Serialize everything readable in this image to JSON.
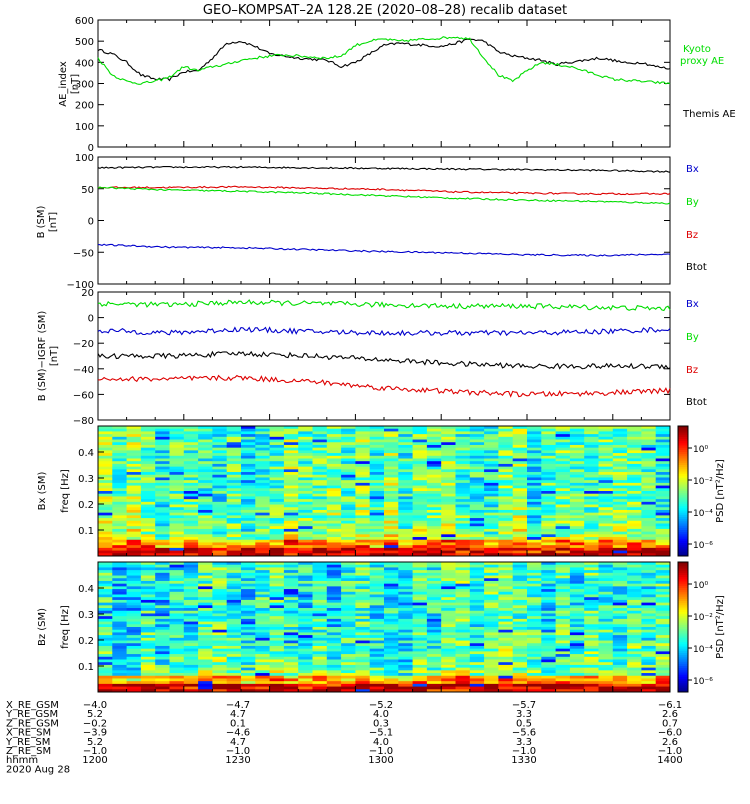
{
  "title": "GEO–KOMPSAT–2A 128.2E (2020–08–28) recalib dataset",
  "colors": {
    "black": "#000000",
    "green": "#00dd00",
    "red": "#dd0000",
    "blue": "#0000cc"
  },
  "chart_data": [
    {
      "type": "line",
      "panel": "ae",
      "ylabel": "AE_index",
      "yunit": "[nT]",
      "ylim": [
        0,
        600
      ],
      "yticks": [
        "0",
        "100",
        "200",
        "300",
        "400",
        "500",
        "600"
      ],
      "xlim": [
        1200,
        1400
      ],
      "legend": [
        {
          "text": "Kyoto",
          "color": "green"
        },
        {
          "text": "proxy AE",
          "color": "green"
        },
        {
          "text": "Themis AE",
          "color": "black"
        }
      ],
      "series": [
        {
          "name": "Themis AE",
          "color": "black",
          "x": [
            1200,
            1205,
            1210,
            1215,
            1220,
            1225,
            1230,
            1235,
            1240,
            1245,
            1250,
            1255,
            1260,
            1265,
            1270,
            1275,
            1280,
            1285,
            1290,
            1295,
            1300,
            1305,
            1310,
            1315,
            1320,
            1325,
            1330,
            1335,
            1340,
            1345,
            1350,
            1355,
            1360,
            1365,
            1370,
            1375,
            1380,
            1385,
            1390,
            1395,
            1400
          ],
          "y": [
            460,
            440,
            400,
            340,
            320,
            320,
            355,
            360,
            420,
            490,
            500,
            475,
            440,
            430,
            420,
            415,
            410,
            380,
            400,
            440,
            480,
            490,
            485,
            480,
            475,
            490,
            510,
            500,
            450,
            430,
            420,
            410,
            390,
            400,
            410,
            420,
            410,
            395,
            400,
            380,
            370
          ]
        },
        {
          "name": "Kyoto proxy AE",
          "color": "green",
          "x": [
            1200,
            1205,
            1210,
            1215,
            1220,
            1225,
            1230,
            1235,
            1240,
            1245,
            1250,
            1255,
            1260,
            1265,
            1270,
            1275,
            1280,
            1285,
            1290,
            1295,
            1300,
            1305,
            1310,
            1315,
            1320,
            1325,
            1330,
            1335,
            1340,
            1345,
            1350,
            1355,
            1360,
            1365,
            1370,
            1375,
            1380,
            1385,
            1390,
            1395,
            1400
          ],
          "y": [
            420,
            340,
            310,
            300,
            310,
            330,
            380,
            360,
            380,
            390,
            410,
            420,
            430,
            435,
            430,
            425,
            420,
            430,
            480,
            500,
            510,
            500,
            505,
            510,
            515,
            520,
            510,
            420,
            340,
            310,
            360,
            400,
            390,
            380,
            360,
            340,
            320,
            315,
            310,
            305,
            300
          ]
        }
      ]
    },
    {
      "type": "line",
      "panel": "bsm",
      "ylabel": "B (SM)",
      "yunit": "[nT]",
      "ylim": [
        -100,
        100
      ],
      "yticks": [
        "−100",
        "−50",
        "0",
        "50",
        "100"
      ],
      "xlim": [
        1200,
        1400
      ],
      "legend": [
        {
          "text": "Bx",
          "color": "blue"
        },
        {
          "text": "By",
          "color": "green"
        },
        {
          "text": "Bz",
          "color": "red"
        },
        {
          "text": "Btot",
          "color": "black"
        }
      ],
      "series": [
        {
          "name": "Btot",
          "color": "black",
          "x": [
            1200,
            1225,
            1250,
            1275,
            1300,
            1325,
            1350,
            1375,
            1400
          ],
          "y": [
            83,
            84,
            84,
            83,
            82,
            81,
            80,
            79,
            77
          ]
        },
        {
          "name": "Bz",
          "color": "red",
          "x": [
            1200,
            1225,
            1250,
            1275,
            1300,
            1325,
            1350,
            1375,
            1400
          ],
          "y": [
            52,
            52,
            53,
            51,
            49,
            45,
            43,
            42,
            42
          ]
        },
        {
          "name": "By",
          "color": "green",
          "x": [
            1200,
            1225,
            1250,
            1275,
            1300,
            1325,
            1350,
            1375,
            1400
          ],
          "y": [
            52,
            48,
            46,
            43,
            39,
            35,
            32,
            30,
            27
          ]
        },
        {
          "name": "Bx",
          "color": "blue",
          "x": [
            1200,
            1225,
            1250,
            1275,
            1300,
            1325,
            1350,
            1375,
            1400
          ],
          "y": [
            -38,
            -42,
            -43,
            -46,
            -49,
            -51,
            -54,
            -55,
            -53
          ]
        }
      ]
    },
    {
      "type": "line",
      "panel": "bres",
      "ylabel": "B (SM)−IGRF (SM)",
      "yunit": "[nT]",
      "ylim": [
        -80,
        20
      ],
      "yticks": [
        "−80",
        "−60",
        "−40",
        "−20",
        "0",
        "20"
      ],
      "xlim": [
        1200,
        1400
      ],
      "legend": [
        {
          "text": "Bx",
          "color": "blue"
        },
        {
          "text": "By",
          "color": "green"
        },
        {
          "text": "Bz",
          "color": "red"
        },
        {
          "text": "Btot",
          "color": "black"
        }
      ],
      "series": [
        {
          "name": "By",
          "color": "green",
          "x": [
            1200,
            1225,
            1250,
            1275,
            1300,
            1325,
            1350,
            1375,
            1400
          ],
          "y": [
            11,
            10,
            12,
            11,
            10,
            9,
            9,
            8,
            7
          ]
        },
        {
          "name": "Bx",
          "color": "blue",
          "x": [
            1200,
            1225,
            1250,
            1275,
            1300,
            1325,
            1350,
            1375,
            1400
          ],
          "y": [
            -10,
            -12,
            -9,
            -11,
            -12,
            -12,
            -12,
            -11,
            -9
          ]
        },
        {
          "name": "Btot",
          "color": "black",
          "x": [
            1200,
            1225,
            1250,
            1275,
            1300,
            1325,
            1350,
            1375,
            1400
          ],
          "y": [
            -30,
            -30,
            -28,
            -30,
            -33,
            -36,
            -38,
            -38,
            -38
          ]
        },
        {
          "name": "Bz",
          "color": "red",
          "x": [
            1200,
            1225,
            1250,
            1275,
            1300,
            1325,
            1350,
            1375,
            1400
          ],
          "y": [
            -48,
            -48,
            -47,
            -50,
            -55,
            -58,
            -60,
            -59,
            -57
          ]
        }
      ]
    },
    {
      "type": "heatmap",
      "panel": "bx_spec",
      "ylabel": "Bx (SM)",
      "yunit": "freq [Hz]",
      "ylim": [
        0,
        0.5
      ],
      "yticks": [
        "0.1",
        "0.2",
        "0.3",
        "0.4"
      ],
      "colorbar": {
        "label": "PSD [nT²/Hz]",
        "ticks": [
          "10⁰",
          "10⁻²",
          "10⁻⁴",
          "10⁻⁶"
        ]
      }
    },
    {
      "type": "heatmap",
      "panel": "bz_spec",
      "ylabel": "Bz (SM)",
      "yunit": "freq [Hz]",
      "ylim": [
        0,
        0.5
      ],
      "yticks": [
        "0.1",
        "0.2",
        "0.3",
        "0.4"
      ],
      "colorbar": {
        "label": "PSD [nT²/Hz]",
        "ticks": [
          "10⁰",
          "10⁻²",
          "10⁻⁴",
          "10⁻⁶"
        ]
      }
    }
  ],
  "footer": {
    "labels": [
      "X_RE_GSM",
      "Y_RE_GSM",
      "Z_RE_GSM",
      "X_RE_SM",
      "Y_RE_SM",
      "Z_RE_SM",
      "hhmm"
    ],
    "date": "2020 Aug 28",
    "columns": [
      [
        "−4.0",
        "5.2",
        "−0.2",
        "−3.9",
        "5.2",
        "−1.0",
        "1200"
      ],
      [
        "−4.7",
        "4.7",
        "0.1",
        "−4.6",
        "4.7",
        "−1.0",
        "1230"
      ],
      [
        "−5.2",
        "4.0",
        "0.3",
        "−5.1",
        "4.0",
        "−1.0",
        "1300"
      ],
      [
        "−5.7",
        "3.3",
        "0.5",
        "−5.6",
        "3.3",
        "−1.0",
        "1330"
      ],
      [
        "−6.1",
        "2.6",
        "0.7",
        "−6.0",
        "2.6",
        "−1.0",
        "1400"
      ]
    ]
  }
}
